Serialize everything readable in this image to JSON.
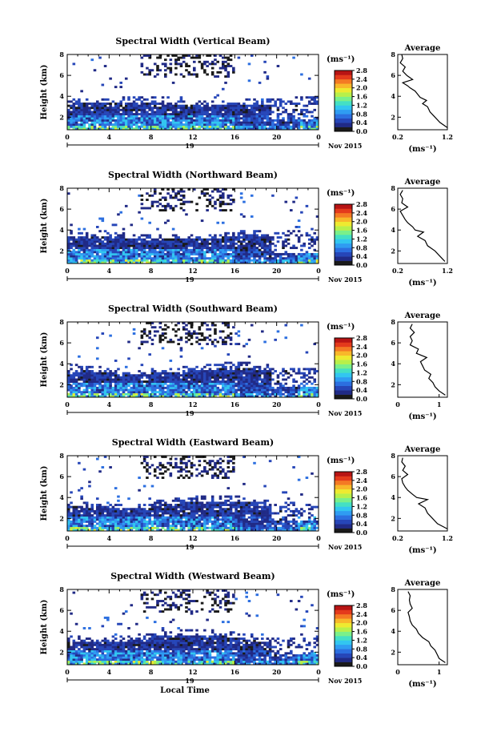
{
  "figure": {
    "xlabel": "Local Time",
    "date_label": "Nov 2015",
    "day_label": "19",
    "colorbar_unit": "(ms⁻¹)",
    "avg_title": "Average",
    "avg_xunit": "(ms⁻¹)",
    "colormap": [
      "#1a1a1a",
      "#202a86",
      "#2646b8",
      "#2c6fe0",
      "#2f9cf2",
      "#32c6f0",
      "#44e0c4",
      "#7af08a",
      "#b8f04a",
      "#eeea30",
      "#f8b82a",
      "#f47a24",
      "#e43a1c",
      "#b81414"
    ]
  },
  "chart_data": [
    {
      "type": "heatmap",
      "title": "Spectral Width (Vertical Beam)",
      "xlabel": "Local Time",
      "ylabel": "Height (km)",
      "xlim": [
        0,
        24
      ],
      "ylim": [
        0.8,
        8
      ],
      "xticks": [
        "0",
        "4",
        "8",
        "12",
        "16",
        "20",
        "0"
      ],
      "yticks": [
        "2",
        "4",
        "6",
        "8"
      ],
      "colorbar": {
        "range": [
          0,
          2.8
        ],
        "ticks": [
          "2.8",
          "2.4",
          "2.0",
          "1.6",
          "1.2",
          "0.8",
          "0.4",
          "0.0"
        ]
      },
      "avg_profile": {
        "xlim": [
          0.2,
          1.2
        ],
        "xticks": [
          "0.2",
          "1.2"
        ],
        "yticks": [
          "2",
          "4",
          "6",
          "8"
        ],
        "height": [
          1.0,
          1.5,
          2.0,
          2.5,
          3.0,
          3.3,
          3.6,
          3.9,
          4.2,
          4.5,
          4.8,
          5.0,
          5.3,
          5.6,
          6.0,
          6.4,
          6.8,
          7.2,
          7.6,
          8.0
        ],
        "value": [
          1.2,
          1.05,
          0.95,
          0.85,
          0.8,
          0.7,
          0.78,
          0.65,
          0.6,
          0.55,
          0.45,
          0.4,
          0.3,
          0.5,
          0.38,
          0.3,
          0.35,
          0.25,
          0.3,
          0.28
        ]
      }
    },
    {
      "type": "heatmap",
      "title": "Spectral Width (Northward Beam)",
      "xlabel": "Local Time",
      "ylabel": "Height (km)",
      "xlim": [
        0,
        24
      ],
      "ylim": [
        0.8,
        8
      ],
      "xticks": [
        "0",
        "4",
        "8",
        "12",
        "16",
        "20",
        "0"
      ],
      "yticks": [
        "2",
        "4",
        "6",
        "8"
      ],
      "colorbar": {
        "range": [
          0,
          2.8
        ],
        "ticks": [
          "2.8",
          "2.4",
          "2.0",
          "1.6",
          "1.2",
          "0.8",
          "0.4",
          "0.0"
        ]
      },
      "avg_profile": {
        "xlim": [
          0.2,
          1.2
        ],
        "xticks": [
          "0.2",
          "1.2"
        ],
        "yticks": [
          "2",
          "4",
          "6",
          "8"
        ],
        "height": [
          1.0,
          1.5,
          2.0,
          2.5,
          3.0,
          3.4,
          3.8,
          4.0,
          4.3,
          4.7,
          5.0,
          5.4,
          5.8,
          6.2,
          6.6,
          7.0,
          7.4,
          7.8
        ],
        "value": [
          1.15,
          1.05,
          0.95,
          0.8,
          0.75,
          0.6,
          0.72,
          0.55,
          0.5,
          0.4,
          0.35,
          0.3,
          0.25,
          0.4,
          0.28,
          0.3,
          0.25,
          0.3
        ]
      }
    },
    {
      "type": "heatmap",
      "title": "Spectral Width (Southward Beam)",
      "xlabel": "Local Time",
      "ylabel": "Height (km)",
      "xlim": [
        0,
        24
      ],
      "ylim": [
        0.8,
        8
      ],
      "xticks": [
        "0",
        "4",
        "8",
        "12",
        "16",
        "20",
        "0"
      ],
      "yticks": [
        "2",
        "4",
        "6",
        "8"
      ],
      "colorbar": {
        "range": [
          0,
          2.8
        ],
        "ticks": [
          "2.8",
          "2.4",
          "2.0",
          "1.6",
          "1.2",
          "0.8",
          "0.4",
          "0.0"
        ]
      },
      "avg_profile": {
        "xlim": [
          0,
          1.2
        ],
        "xticks": [
          "0",
          "1"
        ],
        "yticks": [
          "2",
          "4",
          "6",
          "8"
        ],
        "height": [
          1.0,
          1.4,
          1.8,
          2.2,
          2.6,
          3.0,
          3.4,
          3.8,
          4.2,
          4.6,
          5.0,
          5.4,
          5.8,
          6.2,
          6.6,
          7.0,
          7.4,
          7.8
        ],
        "value": [
          1.15,
          1.0,
          0.9,
          0.85,
          0.75,
          0.8,
          0.65,
          0.6,
          0.55,
          0.7,
          0.45,
          0.5,
          0.3,
          0.35,
          0.3,
          0.4,
          0.3,
          0.35
        ]
      }
    },
    {
      "type": "heatmap",
      "title": "Spectral Width (Eastward Beam)",
      "xlabel": "Local Time",
      "ylabel": "Height (km)",
      "xlim": [
        0,
        24
      ],
      "ylim": [
        0.8,
        8
      ],
      "xticks": [
        "0",
        "4",
        "8",
        "12",
        "16",
        "20",
        "0"
      ],
      "yticks": [
        "2",
        "4",
        "6",
        "8"
      ],
      "colorbar": {
        "range": [
          0,
          2.8
        ],
        "ticks": [
          "2.8",
          "2.4",
          "2.0",
          "1.6",
          "1.2",
          "0.8",
          "0.4",
          "0.0"
        ]
      },
      "avg_profile": {
        "xlim": [
          0.2,
          1.2
        ],
        "xticks": [
          "0.2",
          "1.2"
        ],
        "yticks": [
          "2",
          "4",
          "6",
          "8"
        ],
        "height": [
          1.0,
          1.5,
          2.0,
          2.5,
          3.0,
          3.4,
          3.8,
          4.0,
          4.3,
          4.7,
          5.0,
          5.4,
          5.8,
          6.2,
          6.6,
          7.0,
          7.4,
          7.8
        ],
        "value": [
          1.2,
          1.0,
          0.9,
          0.8,
          0.75,
          0.62,
          0.8,
          0.58,
          0.5,
          0.4,
          0.35,
          0.3,
          0.28,
          0.4,
          0.3,
          0.35,
          0.28,
          0.3
        ]
      }
    },
    {
      "type": "heatmap",
      "title": "Spectral Width (Westward Beam)",
      "xlabel": "Local Time",
      "ylabel": "Height (km)",
      "xlim": [
        0,
        24
      ],
      "ylim": [
        0.8,
        8
      ],
      "xticks": [
        "0",
        "4",
        "8",
        "12",
        "16",
        "20",
        "0"
      ],
      "yticks": [
        "2",
        "4",
        "6",
        "8"
      ],
      "colorbar": {
        "range": [
          0,
          2.8
        ],
        "ticks": [
          "2.8",
          "2.4",
          "2.0",
          "1.6",
          "1.2",
          "0.8",
          "0.4",
          "0.0"
        ]
      },
      "avg_profile": {
        "xlim": [
          0,
          1.2
        ],
        "xticks": [
          "0",
          "1"
        ],
        "yticks": [
          "2",
          "4",
          "6",
          "8"
        ],
        "height": [
          1.0,
          1.4,
          1.8,
          2.2,
          2.6,
          3.0,
          3.4,
          3.8,
          4.2,
          4.6,
          5.0,
          5.4,
          5.8,
          6.2,
          6.6,
          7.0,
          7.4,
          7.8
        ],
        "value": [
          1.15,
          1.0,
          0.95,
          0.9,
          0.8,
          0.75,
          0.6,
          0.5,
          0.45,
          0.35,
          0.3,
          0.28,
          0.25,
          0.35,
          0.3,
          0.28,
          0.3,
          0.25
        ]
      }
    }
  ]
}
